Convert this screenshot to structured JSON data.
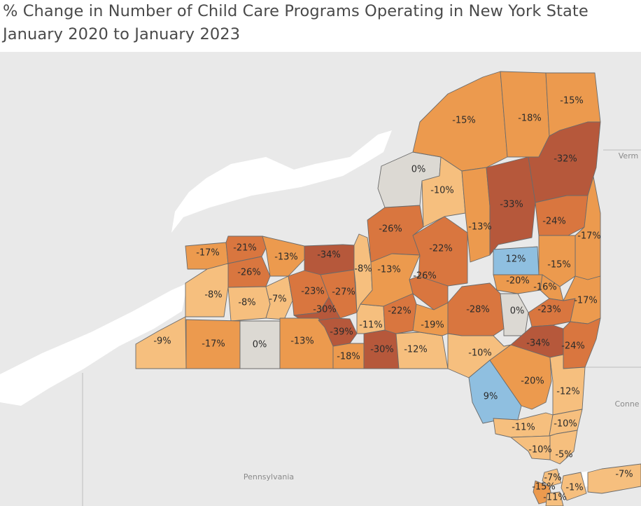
{
  "title": {
    "line1": "% Change in Number of Child Care Programs Operating in New York State",
    "line2": "January 2020 to January 2023"
  },
  "colors": {
    "background": "#e9e9e9",
    "land": "#dedede",
    "water": "#ffffff",
    "neutral": "#dcd9d3",
    "increase": "#8fbfe0",
    "light_decrease": "#f6bf7e",
    "mid_decrease": "#ec9a4e",
    "strong_decrease": "#d9763f",
    "severe_decrease": "#b6583b"
  },
  "place_labels": {
    "pennsylvania": "Pennsylvania",
    "vermont": "Verm",
    "connecticut": "Conne"
  },
  "counties": [
    {
      "key": "wny_nw1",
      "value": -17,
      "label": "-17%"
    },
    {
      "key": "wny_nw2",
      "value": -21,
      "label": "-21%"
    },
    {
      "key": "wny_nw3",
      "value": -13,
      "label": "-13%"
    },
    {
      "key": "wny_nw4",
      "value": -34,
      "label": "-34%"
    },
    {
      "key": "wny_w1",
      "value": -26,
      "label": "-26%"
    },
    {
      "key": "wny_w2",
      "value": -8,
      "label": "-8%"
    },
    {
      "key": "wny_w3",
      "value": -8,
      "label": "-8%"
    },
    {
      "key": "wny_w4",
      "value": -7,
      "label": "-7%"
    },
    {
      "key": "wny_w5",
      "value": -23,
      "label": "-23%"
    },
    {
      "key": "wny_w6",
      "value": -27,
      "label": "-27%"
    },
    {
      "key": "wny_w7",
      "value": -30,
      "label": "-30%"
    },
    {
      "key": "st_sw1",
      "value": -9,
      "label": "-9%"
    },
    {
      "key": "st_sw2",
      "value": -17,
      "label": "-17%"
    },
    {
      "key": "st_sw3",
      "value": 0,
      "label": "0%"
    },
    {
      "key": "st_sw4",
      "value": -13,
      "label": "-13%"
    },
    {
      "key": "st_sw5",
      "value": -39,
      "label": "-39%"
    },
    {
      "key": "st_sw6",
      "value": -18,
      "label": "-18%"
    },
    {
      "key": "fl_1",
      "value": -8,
      "label": "-8%"
    },
    {
      "key": "fl_2",
      "value": -11,
      "label": "-11%"
    },
    {
      "key": "fl_3",
      "value": -30,
      "label": "-30%"
    },
    {
      "key": "fl_4",
      "value": -12,
      "label": "-12%"
    },
    {
      "key": "cny_1",
      "value": -26,
      "label": "-26%"
    },
    {
      "key": "cny_2",
      "value": -13,
      "label": "-13%"
    },
    {
      "key": "cny_3",
      "value": -22,
      "label": "-22%"
    },
    {
      "key": "cny_4",
      "value": -26,
      "label": "-26%"
    },
    {
      "key": "cny_5",
      "value": -22,
      "label": "-22%"
    },
    {
      "key": "cny_6",
      "value": -19,
      "label": "-19%"
    },
    {
      "key": "nc_1",
      "value": 0,
      "label": "0%"
    },
    {
      "key": "nc_2",
      "value": -10,
      "label": "-10%"
    },
    {
      "key": "nc_3",
      "value": -15,
      "label": "-15%"
    },
    {
      "key": "nc_4",
      "value": -18,
      "label": "-18%"
    },
    {
      "key": "nc_5",
      "value": -15,
      "label": "-15%"
    },
    {
      "key": "nc_6",
      "value": -13,
      "label": "-13%"
    },
    {
      "key": "nc_7",
      "value": -33,
      "label": "-33%"
    },
    {
      "key": "nc_8",
      "value": -32,
      "label": "-32%"
    },
    {
      "key": "md_1",
      "value": 12,
      "label": "12%"
    },
    {
      "key": "md_2",
      "value": -24,
      "label": "-24%"
    },
    {
      "key": "md_3",
      "value": -17,
      "label": "-17%"
    },
    {
      "key": "md_4",
      "value": -15,
      "label": "-15%"
    },
    {
      "key": "md_5",
      "value": -20,
      "label": "-20%"
    },
    {
      "key": "md_6",
      "value": -16,
      "label": "-16%"
    },
    {
      "key": "md_7",
      "value": -28,
      "label": "-28%"
    },
    {
      "key": "md_8",
      "value": 0,
      "label": "0%"
    },
    {
      "key": "md_9",
      "value": -23,
      "label": "-23%"
    },
    {
      "key": "md_10",
      "value": -17,
      "label": "-17%"
    },
    {
      "key": "st_1",
      "value": -10,
      "label": "-10%"
    },
    {
      "key": "hv_1",
      "value": -34,
      "label": "-34%"
    },
    {
      "key": "hv_2",
      "value": -24,
      "label": "-24%"
    },
    {
      "key": "st_2",
      "value": 9,
      "label": "9%"
    },
    {
      "key": "hv_3",
      "value": -20,
      "label": "-20%"
    },
    {
      "key": "hv_4",
      "value": -12,
      "label": "-12%"
    },
    {
      "key": "hv_5",
      "value": -11,
      "label": "-11%"
    },
    {
      "key": "hv_6",
      "value": -10,
      "label": "-10%"
    },
    {
      "key": "hv_7",
      "value": -10,
      "label": "-10%"
    },
    {
      "key": "hv_8",
      "value": -5,
      "label": "-5%"
    },
    {
      "key": "nyc_1",
      "value": -7,
      "label": "-7%"
    },
    {
      "key": "nyc_2",
      "value": -15,
      "label": "-15%"
    },
    {
      "key": "nyc_3",
      "value": -1,
      "label": "-1%"
    },
    {
      "key": "nyc_4",
      "value": -11,
      "label": "-11%"
    },
    {
      "key": "li_1",
      "value": -7,
      "label": "-7%"
    }
  ]
}
